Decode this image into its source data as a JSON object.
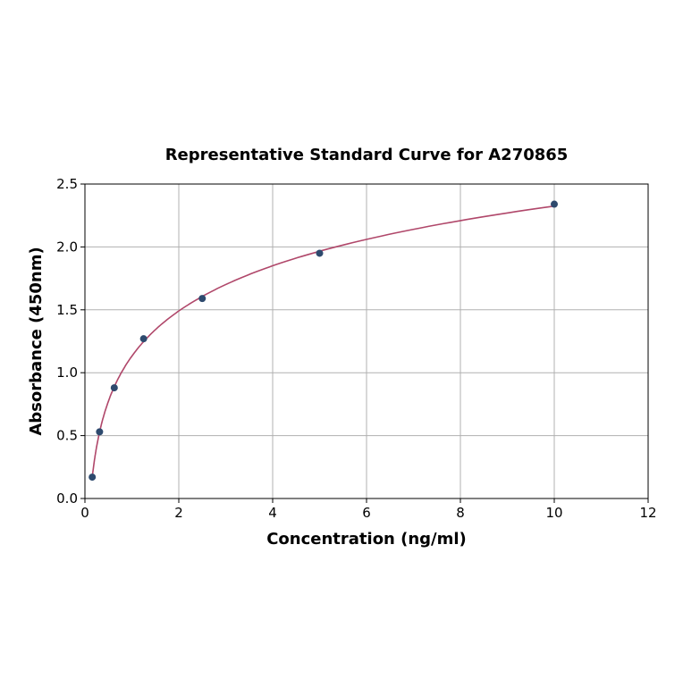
{
  "chart_data": {
    "type": "scatter",
    "title": "Representative Standard Curve for A270865",
    "xlabel": "Concentration (ng/ml)",
    "ylabel": "Absorbance (450nm)",
    "xlim": [
      0,
      12
    ],
    "ylim": [
      0,
      2.5
    ],
    "xticks": [
      "0",
      "2",
      "4",
      "6",
      "8",
      "10",
      "12"
    ],
    "yticks": [
      "0.0",
      "0.5",
      "1.0",
      "1.5",
      "2.0",
      "2.5"
    ],
    "grid": true,
    "points": [
      {
        "x": 0.156,
        "y": 0.17
      },
      {
        "x": 0.312,
        "y": 0.53
      },
      {
        "x": 0.625,
        "y": 0.88
      },
      {
        "x": 1.25,
        "y": 1.27
      },
      {
        "x": 2.5,
        "y": 1.59
      },
      {
        "x": 5,
        "y": 1.95
      },
      {
        "x": 10,
        "y": 2.34
      }
    ],
    "fit_curve": "fitted standard curve",
    "colors": {
      "points": "#2e4a6e",
      "curve": "#b0476a",
      "grid": "#b0b0b0"
    }
  }
}
